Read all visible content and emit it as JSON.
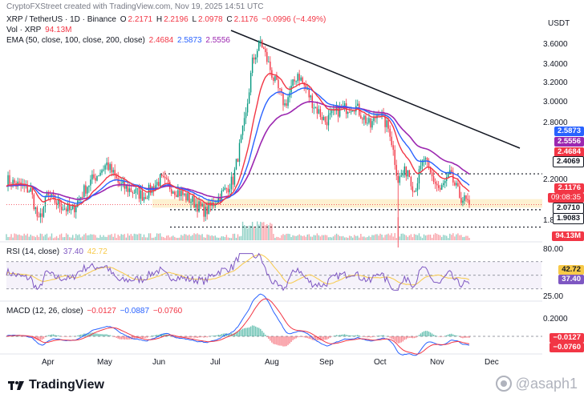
{
  "caption": "CryptoFXStreet created with TradingView.com, Nov 19, 2025 14:51 UTC",
  "ohlc": {
    "symbol": "XRP / TetherUS · 1D · Binance",
    "o_label": "O",
    "o": "2.2171",
    "h_label": "H",
    "h": "2.2196",
    "l_label": "L",
    "l": "2.0978",
    "c_label": "C",
    "c": "2.1176",
    "change": "−0.0996 (−4.49%)"
  },
  "vol": {
    "label": "Vol · XRP",
    "value": "94.13M"
  },
  "ema": {
    "label": "EMA (50, close, 100, close, 200, close)",
    "v1": "2.4684",
    "v2": "2.5873",
    "v3": "2.5556"
  },
  "rsi_legend": {
    "label": "RSI (14, close)",
    "v1": "37.40",
    "v2": "42.72"
  },
  "macd_legend": {
    "label": "MACD (12, 26, close)",
    "v1": "−0.0127",
    "v2": "−0.0887",
    "v3": "−0.0760"
  },
  "price_axis": {
    "currency": "USDT",
    "ticks": [
      "3.6000",
      "3.4000",
      "3.2000",
      "3.0000",
      "2.8000",
      "2.2000",
      "1.8000"
    ]
  },
  "price_tags": {
    "ema100": "2.5873",
    "ema200": "2.5556",
    "ema50": "2.4684",
    "resistance": "2.4069",
    "last": "2.1176",
    "countdown": "09:08:35",
    "support1": "2.0710",
    "support2": "1.9083",
    "volume": "94.13M"
  },
  "rsi_axis": {
    "ticks": [
      "80.00",
      "25.00"
    ],
    "tag_signal": "42.72",
    "tag_rsi": "37.40"
  },
  "macd_axis": {
    "ticks": [
      "0.2000"
    ],
    "tag_macd": "−0.0127",
    "tag_signal": "−0.0760"
  },
  "months": [
    "Apr",
    "May",
    "Jun",
    "Jul",
    "Aug",
    "Sep",
    "Oct",
    "Nov",
    "Dec"
  ],
  "brand": {
    "logo_text": "TradingView",
    "watermark": "@asaph1"
  },
  "colors": {
    "up": "#089981",
    "down": "#f23645",
    "ema50": "#f23645",
    "ema100": "#2962ff",
    "ema200": "#9c27b0",
    "rsi": "#7e57c2",
    "rsi_ma": "#f7c948",
    "macd": "#2962ff",
    "signal": "#f23645"
  },
  "chart_data": [
    {
      "type": "line",
      "title": "XRP / TetherUS · 1D · Binance",
      "ylabel": "USDT",
      "x": [
        "Apr",
        "May",
        "Jun",
        "Jul",
        "Aug",
        "Sep",
        "Oct",
        "Nov"
      ],
      "ylim": [
        1.8,
        3.75
      ],
      "series": [
        {
          "name": "Close",
          "values": [
            2.1,
            2.2,
            2.15,
            2.3,
            3.4,
            2.85,
            2.8,
            2.2
          ]
        },
        {
          "name": "EMA 50",
          "values": [
            2.2,
            2.18,
            2.2,
            2.22,
            2.9,
            2.93,
            2.9,
            2.47
          ]
        },
        {
          "name": "EMA 100",
          "values": [
            2.25,
            2.22,
            2.2,
            2.2,
            2.6,
            2.75,
            2.8,
            2.59
          ]
        },
        {
          "name": "EMA 200",
          "values": [
            2.05,
            2.1,
            2.15,
            2.22,
            2.4,
            2.52,
            2.6,
            2.56
          ]
        }
      ],
      "levels": [
        2.4069,
        2.071,
        1.9083
      ],
      "grid": false
    },
    {
      "type": "line",
      "title": "RSI (14, close)",
      "ylim": [
        25,
        80
      ],
      "series": [
        {
          "name": "RSI",
          "values": [
            45,
            52,
            48,
            55,
            80,
            50,
            45,
            37.4
          ]
        },
        {
          "name": "RSI MA",
          "values": [
            48,
            50,
            49,
            52,
            72,
            54,
            48,
            42.72
          ]
        }
      ]
    },
    {
      "type": "line",
      "title": "MACD (12, 26, close)",
      "series": [
        {
          "name": "MACD",
          "values": [
            -0.02,
            0.01,
            -0.01,
            0.02,
            0.22,
            0.01,
            -0.02,
            -0.0887
          ]
        },
        {
          "name": "Signal",
          "values": [
            -0.01,
            0.0,
            -0.01,
            0.01,
            0.18,
            0.03,
            -0.01,
            -0.076
          ]
        },
        {
          "name": "Histogram",
          "values": [
            -0.01,
            0.01,
            0.0,
            0.01,
            0.04,
            -0.02,
            -0.01,
            -0.0127
          ]
        }
      ]
    }
  ]
}
